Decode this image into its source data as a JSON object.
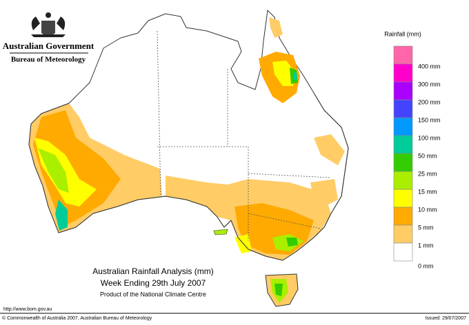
{
  "header": {
    "government": "Australian Government",
    "agency": "Bureau of Meteorology"
  },
  "legend": {
    "title": "Rainfall (mm)",
    "items": [
      {
        "color": "#ff66aa",
        "label": null
      },
      {
        "color": "#ff00cc",
        "label": "400 mm"
      },
      {
        "color": "#aa00ff",
        "label": "300 mm"
      },
      {
        "color": "#4444ff",
        "label": "200 mm"
      },
      {
        "color": "#0099ff",
        "label": "150 mm"
      },
      {
        "color": "#00cc99",
        "label": "100 mm"
      },
      {
        "color": "#33cc00",
        "label": "50 mm"
      },
      {
        "color": "#aaee00",
        "label": "25 mm"
      },
      {
        "color": "#ffff00",
        "label": "15 mm"
      },
      {
        "color": "#ffaa00",
        "label": "10 mm"
      },
      {
        "color": "#ffcc66",
        "label": "5 mm"
      },
      {
        "color": "#ffffff",
        "label": "1 mm"
      }
    ],
    "bottom_label": "0 mm"
  },
  "map": {
    "title": "Australian Rainfall Analysis (mm)",
    "subtitle": "Week Ending 29th July 2007",
    "credit": "Product of the National Climate Centre"
  },
  "footer": {
    "url": "http://www.bom.gov.au",
    "copyright": "© Commonwealth of Australia 2007, Australian Bureau of Meteorology",
    "issued": "Issued: 29/07/2007"
  }
}
